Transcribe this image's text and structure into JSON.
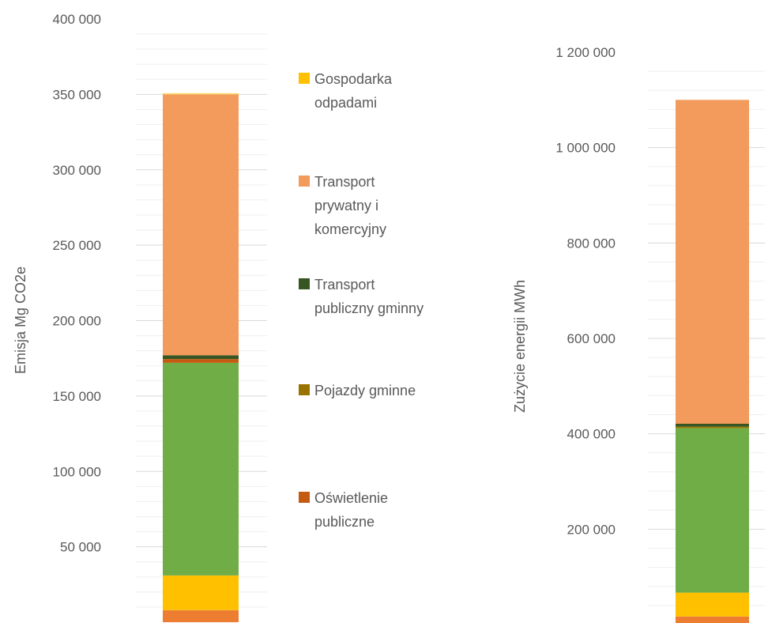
{
  "chart_data": [
    {
      "type": "bar",
      "stacked": true,
      "title": "",
      "ylabel": "Emisja Mg CO2e",
      "ylim": [
        0,
        400000
      ],
      "yticks": [
        50000,
        100000,
        150000,
        200000,
        250000,
        300000,
        350000,
        400000
      ],
      "ytick_labels": [
        "50 000",
        "100 000",
        "150 000",
        "200 000",
        "250 000",
        "300 000",
        "350 000",
        "400 000"
      ],
      "grid": true,
      "series": [
        {
          "key": "base",
          "color": "#ED7D31",
          "values": [
            8000
          ]
        },
        {
          "key": "yellow",
          "color": "#FFC000",
          "values": [
            23000
          ]
        },
        {
          "key": "green",
          "color": "#70AD47",
          "values": [
            141000
          ]
        },
        {
          "key": "rust",
          "color": "#C55A11",
          "values": [
            2500
          ]
        },
        {
          "key": "darkgreen",
          "color": "#375623",
          "values": [
            2500
          ]
        },
        {
          "key": "orange",
          "color": "#F29B5C",
          "values": [
            173000
          ]
        },
        {
          "key": "gold",
          "color": "#FFD966",
          "values": [
            800
          ]
        }
      ]
    },
    {
      "type": "bar",
      "stacked": true,
      "title": "",
      "ylabel": "Zużycie energii  MWh",
      "ylim": [
        0,
        1200000
      ],
      "yticks": [
        200000,
        400000,
        600000,
        800000,
        1000000,
        1200000
      ],
      "ytick_labels": [
        "200 000",
        "400 000",
        "600 000",
        "800 000",
        "1 000 000",
        "1 200 000"
      ],
      "grid": true,
      "series": [
        {
          "key": "base",
          "color": "#ED7D31",
          "values": [
            17000
          ]
        },
        {
          "key": "yellow",
          "color": "#FFC000",
          "values": [
            50000
          ]
        },
        {
          "key": "green",
          "color": "#70AD47",
          "values": [
            345000
          ]
        },
        {
          "key": "olive",
          "color": "#997300",
          "values": [
            3000
          ]
        },
        {
          "key": "darkgreen",
          "color": "#375623",
          "values": [
            6000
          ]
        },
        {
          "key": "orange",
          "color": "#F29B5C",
          "values": [
            679000
          ]
        }
      ]
    }
  ],
  "legend": {
    "placement": "center",
    "items": [
      {
        "lines": [
          "Gospodarka",
          "odpadami"
        ],
        "color": "#FFC000"
      },
      {
        "lines": [
          "Transport",
          "prywatny i",
          "komercyjny"
        ],
        "color": "#F29B5C"
      },
      {
        "lines": [
          "Transport",
          "publiczny gminny"
        ],
        "color": "#375623"
      },
      {
        "lines": [
          "Pojazdy gminne"
        ],
        "color": "#997300"
      },
      {
        "lines": [
          "Oświetlenie",
          "publiczne"
        ],
        "color": "#C55A11"
      }
    ]
  }
}
